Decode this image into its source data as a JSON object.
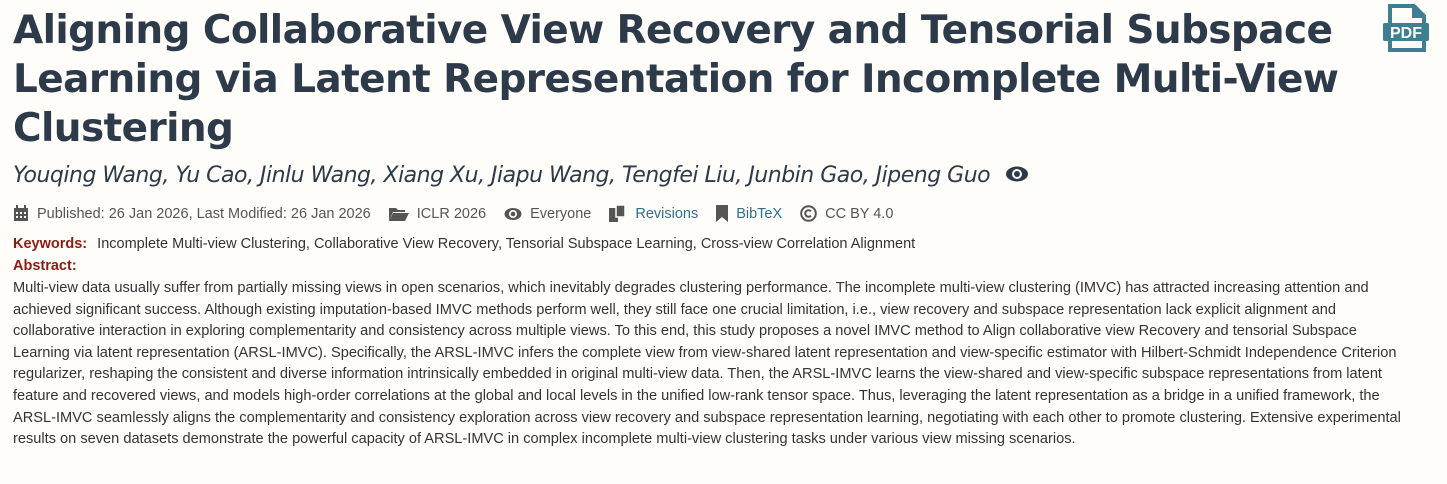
{
  "title": "Aligning Collaborative View Recovery and Tensorial Subspace Learning via Latent Representation for Incomplete Multi-View Clustering",
  "pdf_icon_label": "PDF",
  "authors": "Youqing Wang, Yu Cao, Jinlu Wang, Xiang Xu, Jiapu Wang, Tengfei Liu, Junbin Gao, Jipeng Guo",
  "meta": {
    "dates": "Published: 26 Jan 2026, Last Modified: 26 Jan 2026",
    "venue": "ICLR 2026",
    "readers": "Everyone",
    "revisions": "Revisions",
    "bibtex": "BibTeX",
    "license": "CC BY 4.0"
  },
  "keywords_label": "Keywords:",
  "keywords": "Incomplete Multi-view Clustering, Collaborative View Recovery, Tensorial Subspace Learning, Cross-view Correlation Alignment",
  "abstract_label": "Abstract:",
  "abstract": "Multi-view data usually suffer from partially missing views in open scenarios, which inevitably degrades clustering performance. The incomplete multi-view clustering (IMVC) has attracted increasing attention and achieved significant success. Although existing imputation-based IMVC methods perform well, they still face one crucial limitation, i.e., view recovery and subspace representation lack explicit alignment and collaborative interaction in exploring complementarity and consistency across multiple views. To this end, this study proposes a novel IMVC method to Align collaborative view Recovery and tensorial Subspace Learning via latent representation (ARSL-IMVC). Specifically, the ARSL-IMVC infers the complete view from view-shared latent representation and view-specific estimator with Hilbert-Schmidt Independence Criterion regularizer, reshaping the consistent and diverse information intrinsically embedded in original multi-view data. Then, the ARSL-IMVC learns the view-shared and view-specific subspace representations from latent feature and recovered views, and models high-order correlations at the global and local levels in the unified low-rank tensor space. Thus, leveraging the latent representation as a bridge in a unified framework, the ARSL-IMVC seamlessly aligns the complementarity and consistency exploration across view recovery and subspace representation learning, negotiating with each other to promote clustering. Extensive experimental results on seven datasets demonstrate the powerful capacity of ARSL-IMVC in complex incomplete multi-view clustering tasks under various view missing scenarios."
}
